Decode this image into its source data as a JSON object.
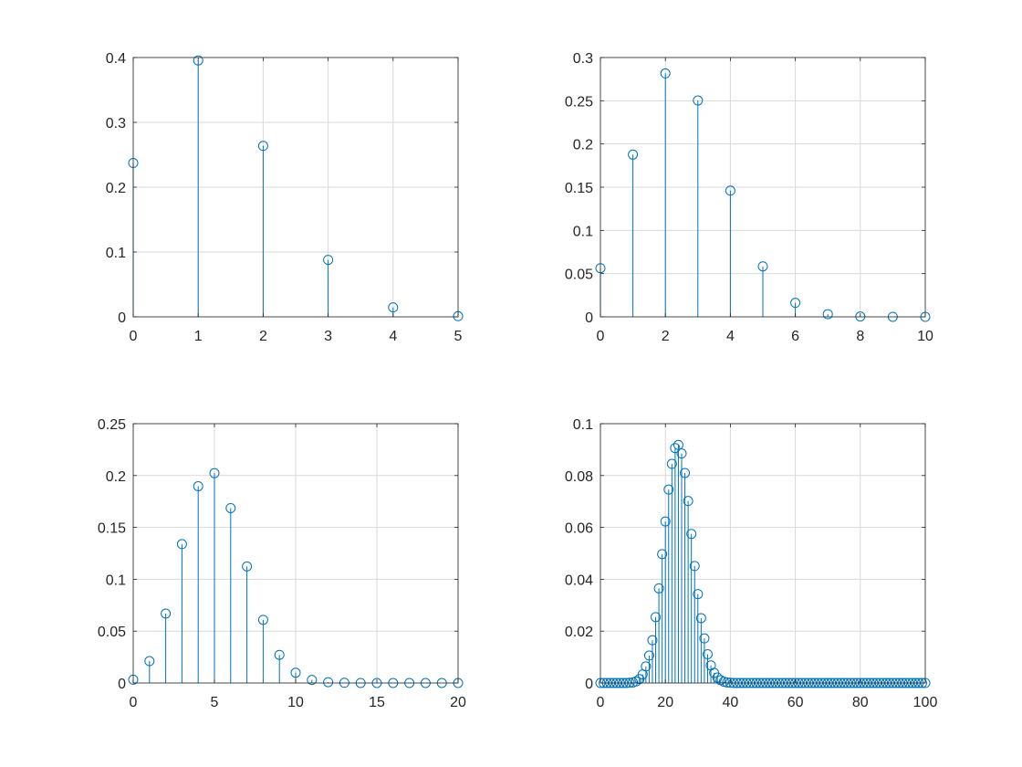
{
  "figure": {
    "colors": {
      "stem": "#0072BD",
      "grid": "#d9d9d9",
      "axes": "#262626",
      "background": "#ffffff"
    }
  },
  "chart_data": [
    {
      "type": "stem",
      "xlim": [
        0,
        5
      ],
      "ylim": [
        0,
        0.4
      ],
      "xticks": [
        0,
        1,
        2,
        3,
        4,
        5
      ],
      "yticks": [
        0,
        0.1,
        0.2,
        0.3,
        0.4
      ],
      "xtick_labels": [
        "0",
        "1",
        "2",
        "3",
        "4",
        "5"
      ],
      "ytick_labels": [
        "0",
        "0.1",
        "0.2",
        "0.3",
        "0.4"
      ],
      "grid": true,
      "x": [
        0,
        1,
        2,
        3,
        4,
        5
      ],
      "values": [
        0.2373,
        0.3955,
        0.2637,
        0.0879,
        0.0146,
        0.001
      ]
    },
    {
      "type": "stem",
      "xlim": [
        0,
        10
      ],
      "ylim": [
        0,
        0.3
      ],
      "xticks": [
        0,
        2,
        4,
        6,
        8,
        10
      ],
      "yticks": [
        0,
        0.05,
        0.1,
        0.15,
        0.2,
        0.25,
        0.3
      ],
      "xtick_labels": [
        "0",
        "2",
        "4",
        "6",
        "8",
        "10"
      ],
      "ytick_labels": [
        "0",
        "0.05",
        "0.1",
        "0.15",
        "0.2",
        "0.25",
        "0.3"
      ],
      "grid": true,
      "x": [
        0,
        1,
        2,
        3,
        4,
        5,
        6,
        7,
        8,
        9,
        10
      ],
      "values": [
        0.0563,
        0.1877,
        0.2816,
        0.2503,
        0.146,
        0.0584,
        0.0162,
        0.0031,
        0.0004,
        3e-05,
        1e-06
      ]
    },
    {
      "type": "stem",
      "xlim": [
        0,
        20
      ],
      "ylim": [
        0,
        0.25
      ],
      "xticks": [
        0,
        5,
        10,
        15,
        20
      ],
      "yticks": [
        0,
        0.05,
        0.1,
        0.15,
        0.2,
        0.25
      ],
      "xtick_labels": [
        "0",
        "5",
        "10",
        "15",
        "20"
      ],
      "ytick_labels": [
        "0",
        "0.05",
        "0.1",
        "0.15",
        "0.2",
        "0.25"
      ],
      "grid": true,
      "x": [
        0,
        1,
        2,
        3,
        4,
        5,
        6,
        7,
        8,
        9,
        10,
        11,
        12,
        13,
        14,
        15,
        16,
        17,
        18,
        19,
        20
      ],
      "values": [
        0.0032,
        0.0211,
        0.0669,
        0.1339,
        0.1897,
        0.2023,
        0.1686,
        0.1124,
        0.0609,
        0.0271,
        0.0099,
        0.003,
        0.0008,
        0.0002,
        3e-05,
        4e-06,
        0,
        0,
        0,
        0,
        0
      ]
    },
    {
      "type": "stem",
      "xlim": [
        0,
        100
      ],
      "ylim": [
        0,
        0.1
      ],
      "xticks": [
        0,
        20,
        40,
        60,
        80,
        100
      ],
      "yticks": [
        0,
        0.02,
        0.04,
        0.06,
        0.08,
        0.1
      ],
      "xtick_labels": [
        "0",
        "20",
        "40",
        "60",
        "80",
        "100"
      ],
      "ytick_labels": [
        "0",
        "0.02",
        "0.04",
        "0.06",
        "0.08",
        "0.1"
      ],
      "grid": true,
      "x": [
        0,
        1,
        2,
        3,
        4,
        5,
        6,
        7,
        8,
        9,
        10,
        11,
        12,
        13,
        14,
        15,
        16,
        17,
        18,
        19,
        20,
        21,
        22,
        23,
        24,
        25,
        26,
        27,
        28,
        29,
        30,
        31,
        32,
        33,
        34,
        35,
        36,
        37,
        38,
        39,
        40,
        41,
        42,
        43,
        44,
        45,
        46,
        47,
        48,
        49,
        50,
        51,
        52,
        53,
        54,
        55,
        56,
        57,
        58,
        59,
        60,
        61,
        62,
        63,
        64,
        65,
        66,
        67,
        68,
        69,
        70,
        71,
        72,
        73,
        74,
        75,
        76,
        77,
        78,
        79,
        80,
        81,
        82,
        83,
        84,
        85,
        86,
        87,
        88,
        89,
        90,
        91,
        92,
        93,
        94,
        95,
        96,
        97,
        98,
        99,
        100
      ],
      "values": [
        0,
        0,
        0,
        0,
        0,
        0,
        0,
        0,
        0,
        0.0001,
        0.0002,
        0.0006,
        0.0015,
        0.0033,
        0.0064,
        0.0106,
        0.0165,
        0.0254,
        0.0365,
        0.0497,
        0.0623,
        0.0746,
        0.0845,
        0.0906,
        0.0918,
        0.0885,
        0.081,
        0.0702,
        0.0575,
        0.0451,
        0.0343,
        0.025,
        0.0172,
        0.0111,
        0.0068,
        0.0039,
        0.0021,
        0.0011,
        0.0005,
        0.0002,
        0.0001,
        0,
        0,
        0,
        0,
        0,
        0,
        0,
        0,
        0,
        0,
        0,
        0,
        0,
        0,
        0,
        0,
        0,
        0,
        0,
        0,
        0,
        0,
        0,
        0,
        0,
        0,
        0,
        0,
        0,
        0,
        0,
        0,
        0,
        0,
        0,
        0,
        0,
        0,
        0,
        0,
        0,
        0,
        0,
        0,
        0,
        0,
        0,
        0,
        0,
        0,
        0,
        0,
        0,
        0,
        0,
        0,
        0,
        0,
        0,
        0
      ]
    }
  ]
}
